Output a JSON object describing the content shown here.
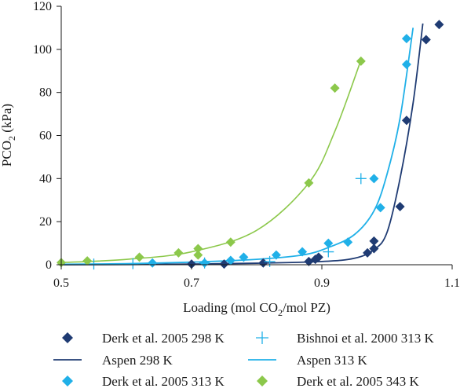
{
  "chart_data": {
    "type": "scatter",
    "title": "",
    "xlabel": "Loading (mol CO",
    "xlabel_sub": "2",
    "xlabel_tail": "/mol PZ)",
    "ylabel": "PCO",
    "ylabel_sub": "2",
    "ylabel_tail": " (kPa)",
    "xlim": [
      0.5,
      1.1
    ],
    "ylim": [
      0,
      120
    ],
    "x_ticks": [
      0.5,
      0.7,
      0.9,
      1.1
    ],
    "x_tick_labels": [
      "0.5",
      "0.7",
      "0.9",
      "1.1"
    ],
    "y_ticks": [
      0,
      20,
      40,
      60,
      80,
      100,
      120
    ],
    "y_tick_labels": [
      "0",
      "20",
      "40",
      "60",
      "80",
      "100",
      "120"
    ],
    "grid": false,
    "legend_position": "bottom",
    "colors": {
      "dark": "#1f3b73",
      "light": "#20b0e8",
      "green": "#8cc84b"
    },
    "series": [
      {
        "name": "Derk et al. 2005 298 K",
        "kind": "marker",
        "marker": "diamond",
        "color": "#1f3b73",
        "points": [
          [
            0.7,
            0.3
          ],
          [
            0.75,
            0.3
          ],
          [
            0.81,
            0.8
          ],
          [
            0.88,
            1.5
          ],
          [
            0.89,
            2.5
          ],
          [
            0.895,
            3.5
          ],
          [
            0.97,
            5.5
          ],
          [
            0.98,
            7.5
          ],
          [
            0.98,
            11
          ],
          [
            1.02,
            27
          ],
          [
            1.03,
            67
          ],
          [
            1.06,
            104.5
          ],
          [
            1.08,
            111.5
          ]
        ]
      },
      {
        "name": "Bishnoi et al. 2000 313 K",
        "kind": "marker",
        "marker": "plus",
        "color": "#20b0e8",
        "points": [
          [
            0.55,
            0.3
          ],
          [
            0.61,
            0.5
          ],
          [
            0.72,
            0.8
          ],
          [
            0.82,
            1.5
          ],
          [
            0.91,
            6
          ],
          [
            0.96,
            40
          ]
        ]
      },
      {
        "name": "Aspen 298 K",
        "kind": "line",
        "color": "#1f3b73",
        "points": [
          [
            0.5,
            0.0
          ],
          [
            0.6,
            0.1
          ],
          [
            0.7,
            0.3
          ],
          [
            0.8,
            0.7
          ],
          [
            0.9,
            1.5
          ],
          [
            0.95,
            3
          ],
          [
            0.98,
            7
          ],
          [
            1.0,
            15
          ],
          [
            1.02,
            40
          ],
          [
            1.04,
            75
          ],
          [
            1.055,
            112
          ]
        ]
      },
      {
        "name": "Aspen 313 K",
        "kind": "line",
        "color": "#20b0e8",
        "points": [
          [
            0.5,
            0.2
          ],
          [
            0.6,
            0.5
          ],
          [
            0.7,
            1.2
          ],
          [
            0.8,
            2.5
          ],
          [
            0.87,
            4.5
          ],
          [
            0.91,
            8
          ],
          [
            0.95,
            14
          ],
          [
            0.98,
            25
          ],
          [
            1.0,
            42
          ],
          [
            1.02,
            68
          ],
          [
            1.04,
            110
          ]
        ]
      },
      {
        "name": "Derk et al. 2005 313 K",
        "kind": "marker",
        "marker": "diamond",
        "color": "#20b0e8",
        "points": [
          [
            0.64,
            0.8
          ],
          [
            0.72,
            0.8
          ],
          [
            0.76,
            2
          ],
          [
            0.78,
            3.5
          ],
          [
            0.83,
            4.5
          ],
          [
            0.87,
            6
          ],
          [
            0.91,
            10
          ],
          [
            0.94,
            10.5
          ],
          [
            0.98,
            40
          ],
          [
            0.99,
            26.5
          ],
          [
            1.03,
            93
          ],
          [
            1.03,
            105
          ]
        ]
      },
      {
        "name": "Derk et al. 2005 343 K",
        "kind": "marker",
        "marker": "diamond",
        "color": "#8cc84b",
        "fit": [
          [
            0.5,
            1.0
          ],
          [
            0.6,
            2.5
          ],
          [
            0.7,
            6
          ],
          [
            0.8,
            16
          ],
          [
            0.88,
            38
          ],
          [
            0.92,
            62
          ],
          [
            0.96,
            95
          ]
        ],
        "points": [
          [
            0.5,
            1.0
          ],
          [
            0.54,
            1.8
          ],
          [
            0.62,
            3.5
          ],
          [
            0.68,
            5.5
          ],
          [
            0.71,
            4.5
          ],
          [
            0.71,
            7.5
          ],
          [
            0.76,
            10.5
          ],
          [
            0.88,
            38
          ],
          [
            0.92,
            82
          ],
          [
            0.96,
            94.5
          ]
        ]
      }
    ]
  }
}
